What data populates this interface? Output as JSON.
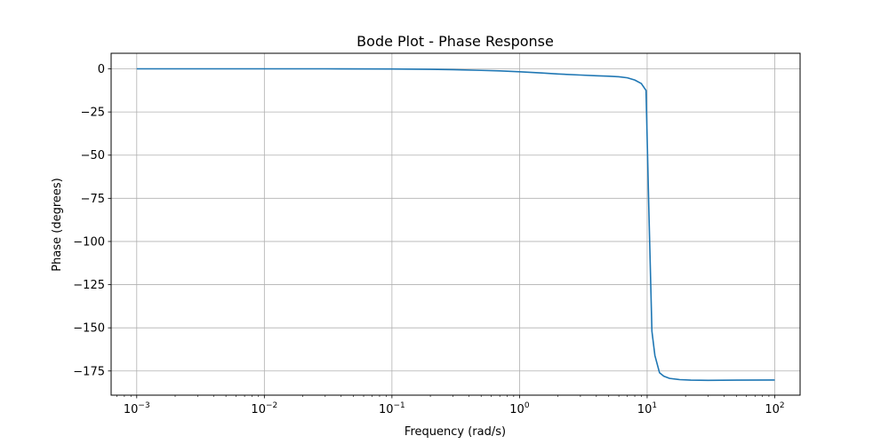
{
  "chart_data": {
    "type": "line",
    "title": "Bode Plot - Phase Response",
    "xlabel": "Frequency (rad/s)",
    "ylabel": "Phase (degrees)",
    "xscale": "log",
    "xlim": [
      0.00063,
      158
    ],
    "ylim": [
      -189,
      9
    ],
    "grid": true,
    "x_ticks": [
      {
        "value": 0.001,
        "base": "10",
        "exp": "−3"
      },
      {
        "value": 0.01,
        "base": "10",
        "exp": "−2"
      },
      {
        "value": 0.1,
        "base": "10",
        "exp": "−1"
      },
      {
        "value": 1,
        "base": "10",
        "exp": "0"
      },
      {
        "value": 10,
        "base": "10",
        "exp": "1"
      },
      {
        "value": 100,
        "base": "10",
        "exp": "2"
      }
    ],
    "y_ticks": [
      {
        "value": 0,
        "label": "0"
      },
      {
        "value": -25,
        "label": "−25"
      },
      {
        "value": -50,
        "label": "−50"
      },
      {
        "value": -75,
        "label": "−75"
      },
      {
        "value": -100,
        "label": "−100"
      },
      {
        "value": -125,
        "label": "−125"
      },
      {
        "value": -150,
        "label": "−150"
      },
      {
        "value": -175,
        "label": "−175"
      }
    ],
    "series": [
      {
        "color": "#1f77b4",
        "x": [
          0.001,
          0.003,
          0.01,
          0.03,
          0.1,
          0.2,
          0.3,
          0.5,
          0.7,
          1,
          1.5,
          2,
          3,
          4,
          5,
          6,
          7,
          8,
          9,
          9.8,
          10.3,
          10.9,
          11.5,
          12.5,
          13.5,
          15,
          18,
          22,
          30,
          50,
          100
        ],
        "y": [
          0.0,
          0.0,
          0.0,
          0.0,
          -0.1,
          -0.3,
          -0.5,
          -0.9,
          -1.2,
          -1.7,
          -2.4,
          -3.0,
          -3.6,
          -4.0,
          -4.3,
          -4.6,
          -5.2,
          -6.5,
          -8.5,
          -12.5,
          -80,
          -152,
          -166,
          -176,
          -178,
          -179.3,
          -180,
          -180.3,
          -180.4,
          -180.3,
          -180.2
        ]
      }
    ]
  }
}
